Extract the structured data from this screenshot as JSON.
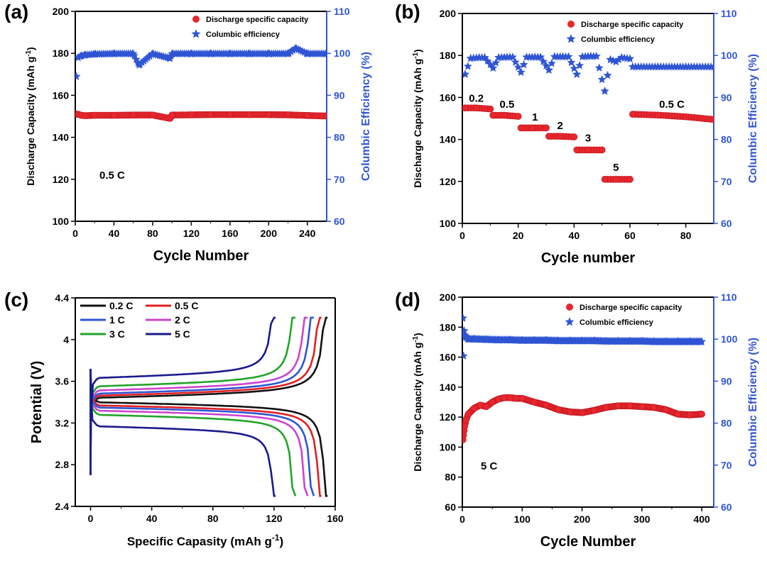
{
  "colors": {
    "capacity": "#e8262e",
    "efficiency": "#2f55d4",
    "axis": "#000000"
  },
  "chart_data": [
    {
      "panel": "(a)",
      "type": "scatter",
      "xlabel": "Cycle Number",
      "ylabel": "Discharge Capacity (mAh g-1)",
      "y2label": "Columbic Efficiency (%)",
      "xlim": [
        0,
        260
      ],
      "ylim": [
        100,
        200
      ],
      "y2lim": [
        60,
        110
      ],
      "xticks": [
        0,
        40,
        80,
        120,
        160,
        200,
        240
      ],
      "yticks": [
        100,
        120,
        140,
        160,
        180,
        200
      ],
      "y2ticks": [
        60,
        70,
        80,
        90,
        100,
        110
      ],
      "legend": [
        "Discharge specific capacity",
        "Columbic efficiency"
      ],
      "annotation": "0.5 C",
      "series": [
        {
          "name": "Discharge specific capacity",
          "axis": "left",
          "marker": "circle",
          "x": [
            1,
            3,
            6,
            10,
            20,
            40,
            60,
            80,
            98,
            100,
            120,
            140,
            160,
            180,
            200,
            220,
            240,
            255,
            260
          ],
          "y": [
            151,
            151,
            150.5,
            150.3,
            150.5,
            150.5,
            150.6,
            150.6,
            149,
            150.6,
            150.7,
            150.8,
            150.8,
            150.8,
            150.8,
            150.7,
            150.4,
            150.2,
            150.2
          ]
        },
        {
          "name": "Columbic efficiency",
          "axis": "right",
          "marker": "star",
          "x": [
            1,
            3,
            6,
            10,
            20,
            40,
            60,
            66,
            80,
            98,
            100,
            120,
            140,
            160,
            180,
            200,
            220,
            228,
            240,
            260
          ],
          "y": [
            94.5,
            99,
            99.4,
            99.6,
            99.8,
            99.9,
            99.9,
            97.2,
            99.9,
            98.8,
            99.9,
            99.9,
            99.9,
            99.9,
            99.9,
            99.9,
            99.9,
            101.2,
            99.9,
            99.9
          ]
        }
      ]
    },
    {
      "panel": "(b)",
      "type": "scatter",
      "xlabel": "Cycle number",
      "ylabel": "Discharge Capacity (mAh g-1)",
      "y2label": "Columbic Efficiency (%)",
      "xlim": [
        0,
        90
      ],
      "ylim": [
        100,
        200
      ],
      "y2lim": [
        60,
        110
      ],
      "xticks": [
        0,
        20,
        40,
        60,
        80
      ],
      "yticks": [
        100,
        120,
        140,
        160,
        180,
        200
      ],
      "y2ticks": [
        60,
        70,
        80,
        90,
        100,
        110
      ],
      "legend": [
        "Discharge specific capacity",
        "Columbic efficiency"
      ],
      "rate_labels": [
        {
          "text": "0.2",
          "x": 5,
          "y": 158
        },
        {
          "text": "0.5",
          "x": 16,
          "y": 155
        },
        {
          "text": "1",
          "x": 26,
          "y": 149
        },
        {
          "text": "2",
          "x": 35,
          "y": 145
        },
        {
          "text": "3",
          "x": 45,
          "y": 139
        },
        {
          "text": "5",
          "x": 55,
          "y": 125
        },
        {
          "text": "0.5 C",
          "x": 75,
          "y": 155
        }
      ],
      "series": [
        {
          "name": "Discharge specific capacity",
          "axis": "left",
          "marker": "circle",
          "x": [
            1,
            5,
            10,
            11,
            15,
            20,
            21,
            25,
            30,
            31,
            35,
            40,
            41,
            45,
            50,
            51,
            55,
            60,
            61,
            70,
            80,
            90
          ],
          "y": [
            155,
            155,
            154.5,
            151.5,
            151.5,
            151,
            145.5,
            145.5,
            145.5,
            141.5,
            141.5,
            141.2,
            135,
            135,
            135,
            121,
            121,
            121,
            152,
            151.6,
            150.8,
            149.5
          ]
        },
        {
          "name": "Columbic efficiency",
          "axis": "right",
          "marker": "star",
          "x": [
            1,
            3,
            6,
            8,
            11,
            13,
            16,
            18,
            21,
            23,
            26,
            28,
            31,
            33,
            36,
            38,
            41,
            43,
            46,
            48,
            51,
            53,
            55,
            57,
            60,
            61,
            70,
            80,
            90
          ],
          "y": [
            95.5,
            99.3,
            99.5,
            99.5,
            97,
            99.5,
            99.6,
            99.6,
            96,
            99.6,
            99.6,
            99.6,
            96.5,
            99.7,
            99.7,
            99.7,
            95.5,
            99.7,
            99.8,
            99.8,
            91.5,
            99,
            98.5,
            99.5,
            99.2,
            97.3,
            97.3,
            97.3,
            97.3
          ]
        }
      ]
    },
    {
      "panel": "(c)",
      "type": "line",
      "xlabel": "Specific Capasity (mAh g-1)",
      "ylabel": "Potential (V)",
      "xlim": [
        -10,
        160
      ],
      "ylim": [
        2.4,
        4.4
      ],
      "xticks": [
        0,
        40,
        80,
        120,
        160
      ],
      "yticks": [
        2.4,
        2.8,
        3.2,
        3.6,
        4.0,
        4.4
      ],
      "legend": [
        "0.2 C",
        "0.5 C",
        "1 C",
        "2 C",
        "3 C",
        "5 C"
      ],
      "series": [
        {
          "name": "0.2 C",
          "color": "#111111",
          "capacity": 155,
          "charge_plateau": 3.44,
          "discharge_plateau": 3.4
        },
        {
          "name": "0.5 C",
          "color": "#e02020",
          "capacity": 151,
          "charge_plateau": 3.46,
          "discharge_plateau": 3.37
        },
        {
          "name": "1 C",
          "color": "#2f55d4",
          "capacity": 146,
          "charge_plateau": 3.48,
          "discharge_plateau": 3.35
        },
        {
          "name": "2 C",
          "color": "#cc44cc",
          "capacity": 142,
          "charge_plateau": 3.51,
          "discharge_plateau": 3.32
        },
        {
          "name": "3 C",
          "color": "#22a32a",
          "capacity": 134,
          "charge_plateau": 3.55,
          "discharge_plateau": 3.28
        },
        {
          "name": "5 C",
          "color": "#1a1a8c",
          "capacity": 121,
          "charge_plateau": 3.63,
          "discharge_plateau": 3.17
        }
      ]
    },
    {
      "panel": "(d)",
      "type": "scatter",
      "xlabel": "Cycle Number",
      "ylabel": "Discharge Capacity (mAh g-1)",
      "y2label": "Columbic Efficiency (%)",
      "xlim": [
        0,
        420
      ],
      "ylim": [
        60,
        200
      ],
      "y2lim": [
        60,
        110
      ],
      "xticks": [
        0,
        100,
        200,
        300,
        400
      ],
      "yticks": [
        60,
        80,
        100,
        120,
        140,
        160,
        180,
        200
      ],
      "y2ticks": [
        60,
        70,
        80,
        90,
        100,
        110
      ],
      "legend": [
        "Discharge specific capacity",
        "Columbic efficiency"
      ],
      "annotation": "5 C",
      "series": [
        {
          "name": "Discharge specific capacity",
          "axis": "left",
          "marker": "circle",
          "x": [
            1,
            2,
            4,
            6,
            10,
            20,
            30,
            40,
            50,
            60,
            70,
            80,
            90,
            100,
            120,
            140,
            160,
            180,
            200,
            220,
            240,
            260,
            280,
            300,
            320,
            340,
            360,
            380,
            400
          ],
          "y": [
            105,
            108,
            114,
            118,
            122,
            126,
            128,
            127,
            130,
            132,
            133,
            133,
            132.5,
            132.5,
            130,
            128,
            125,
            123.5,
            123,
            124.5,
            126.5,
            127.5,
            127.5,
            127,
            126.5,
            125,
            122,
            121.5,
            122
          ]
        },
        {
          "name": "Columbic efficiency",
          "axis": "right",
          "marker": "star",
          "x": [
            1,
            2,
            3,
            4,
            6,
            10,
            20,
            40,
            60,
            80,
            100,
            120,
            140,
            160,
            180,
            200,
            220,
            240,
            260,
            280,
            300,
            320,
            340,
            360,
            380,
            400
          ],
          "y": [
            105,
            96,
            102,
            101,
            100.5,
            100,
            100,
            99.9,
            99.8,
            99.8,
            99.7,
            99.7,
            99.7,
            99.6,
            99.6,
            99.6,
            99.6,
            99.5,
            99.5,
            99.5,
            99.5,
            99.4,
            99.4,
            99.4,
            99.4,
            99.4
          ]
        }
      ]
    }
  ]
}
